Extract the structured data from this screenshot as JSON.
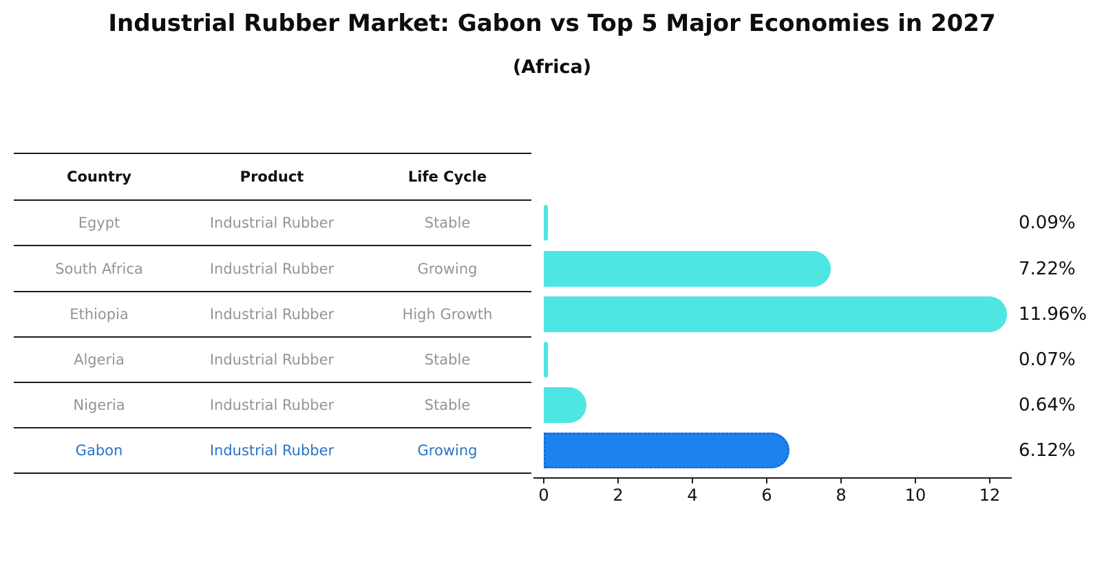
{
  "title": "Industrial Rubber Market: Gabon vs Top 5 Major Economies in 2027",
  "subtitle": "(Africa)",
  "table": {
    "headers": [
      "Country",
      "Product",
      "Life Cycle"
    ],
    "rows": [
      {
        "country": "Egypt",
        "product": "Industrial Rubber",
        "life_cycle": "Stable",
        "highlight": false
      },
      {
        "country": "South Africa",
        "product": "Industrial Rubber",
        "life_cycle": "Growing",
        "highlight": false
      },
      {
        "country": "Ethiopia",
        "product": "Industrial Rubber",
        "life_cycle": "High Growth",
        "highlight": false
      },
      {
        "country": "Algeria",
        "product": "Industrial Rubber",
        "life_cycle": "Stable",
        "highlight": false
      },
      {
        "country": "Nigeria",
        "product": "Industrial Rubber",
        "life_cycle": "Stable",
        "highlight": false
      },
      {
        "country": "Gabon",
        "product": "Industrial Rubber",
        "life_cycle": "Growing",
        "highlight": true
      }
    ]
  },
  "chart_data": {
    "type": "bar",
    "orientation": "horizontal",
    "title": "Industrial Rubber Market: Gabon vs Top 5 Major Economies in 2027",
    "subtitle": "(Africa)",
    "categories": [
      "Egypt",
      "South Africa",
      "Ethiopia",
      "Algeria",
      "Nigeria",
      "Gabon"
    ],
    "values": [
      0.09,
      7.22,
      11.96,
      0.07,
      0.64,
      6.12
    ],
    "value_labels": [
      "0.09%",
      "7.22%",
      "11.96%",
      "0.07%",
      "0.64%",
      "6.12%"
    ],
    "x_ticks": [
      0,
      2,
      4,
      6,
      8,
      10,
      12
    ],
    "xlim": [
      0,
      12.6
    ],
    "xlabel": "",
    "ylabel": "",
    "grid": false,
    "legend": false,
    "highlight_index": 5,
    "colors": {
      "bar": "#4DE6E3",
      "highlight_bar": "#1E82EE",
      "highlight_border": "#1A6AD4",
      "highlight_text": "#2874C8",
      "row_text": "#949494",
      "header_text": "#111111",
      "value_text": "#111111",
      "line": "#1C1C1C"
    }
  }
}
